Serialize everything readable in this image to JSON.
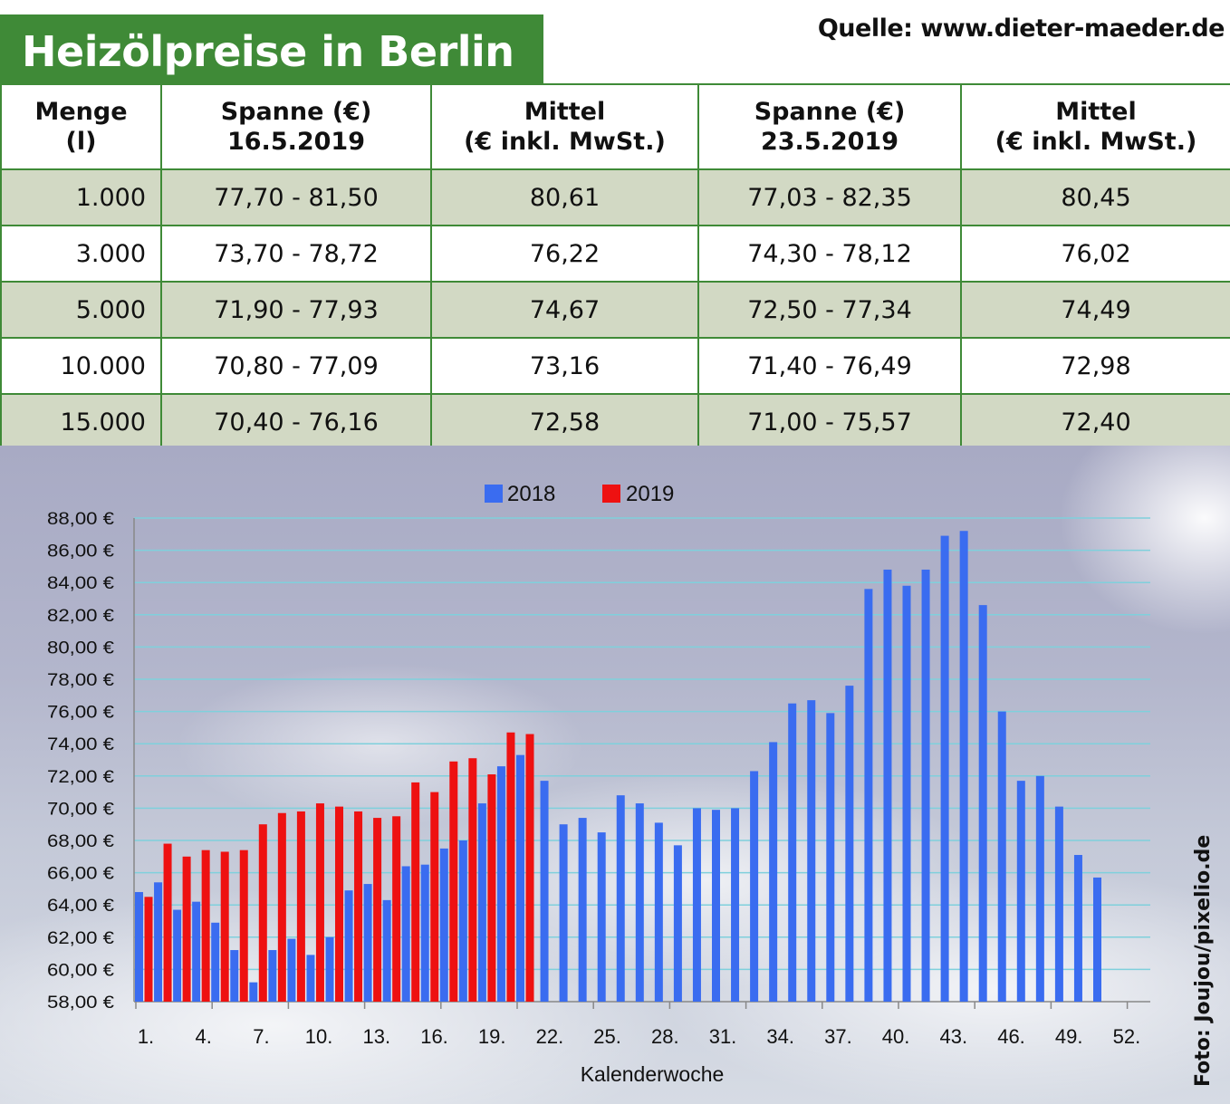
{
  "header": {
    "title": "Heizölpreise in Berlin",
    "source": "Quelle: www.dieter-maeder.de"
  },
  "table": {
    "headers": [
      [
        "Menge",
        "(l)"
      ],
      [
        "Spanne (€)",
        "16.5.2019"
      ],
      [
        "Mittel",
        "(€ inkl. MwSt.)"
      ],
      [
        "Spanne (€)",
        "23.5.2019"
      ],
      [
        "Mittel",
        "(€ inkl. MwSt.)"
      ]
    ],
    "rows": [
      [
        "1.000",
        "77,70 - 81,50",
        "80,61",
        "77,03 - 82,35",
        "80,45"
      ],
      [
        "3.000",
        "73,70 - 78,72",
        "76,22",
        "74,30 - 78,12",
        "76,02"
      ],
      [
        "5.000",
        "71,90 - 77,93",
        "74,67",
        "72,50 - 77,34",
        "74,49"
      ],
      [
        "10.000",
        "70,80 - 77,09",
        "73,16",
        "71,40 - 76,49",
        "72,98"
      ],
      [
        "15.000",
        "70,40 - 76,16",
        "72,58",
        "71,00 - 75,57",
        "72,40"
      ]
    ]
  },
  "photo_credit": "Foto: Joujou/pixelio.de",
  "colors": {
    "green": "#3f8a37",
    "shade": "#d2d9c4",
    "series_2018": "#3a6cf0",
    "series_2019": "#ee1111",
    "gridline": "#7fd0dc"
  },
  "chart_data": {
    "type": "bar",
    "title": "",
    "xlabel": "Kalenderwoche",
    "ylabel": "",
    "legend_position": "top-center",
    "grid": true,
    "ylim": [
      58,
      88
    ],
    "yticks": [
      "58,00 €",
      "60,00 €",
      "62,00 €",
      "64,00 €",
      "66,00 €",
      "68,00 €",
      "70,00 €",
      "72,00 €",
      "74,00 €",
      "76,00 €",
      "78,00 €",
      "80,00 €",
      "82,00 €",
      "84,00 €",
      "86,00 €",
      "88,00 €"
    ],
    "xticks": [
      "1.",
      "4.",
      "7.",
      "10.",
      "13.",
      "16.",
      "19.",
      "22.",
      "25.",
      "28.",
      "31.",
      "34.",
      "37.",
      "40.",
      "43.",
      "46.",
      "49.",
      "52."
    ],
    "series": [
      {
        "name": "2018",
        "values": [
          64.8,
          65.4,
          63.7,
          64.2,
          62.9,
          61.2,
          59.2,
          61.2,
          61.9,
          60.9,
          62.0,
          64.9,
          65.3,
          64.3,
          66.4,
          66.5,
          67.5,
          68.0,
          70.3,
          72.6,
          73.3,
          71.7,
          69.0,
          69.4,
          68.5,
          70.8,
          70.3,
          69.1,
          67.7,
          70.0,
          69.9,
          70.0,
          72.3,
          74.1,
          76.5,
          76.7,
          75.9,
          77.6,
          83.6,
          84.8,
          83.8,
          84.8,
          86.9,
          87.2,
          82.6,
          76.0,
          71.7,
          72.0,
          70.1,
          67.1,
          65.7
        ]
      },
      {
        "name": "2019",
        "values": [
          64.5,
          67.8,
          67.0,
          67.4,
          67.3,
          67.4,
          69.0,
          69.7,
          69.8,
          70.3,
          70.1,
          69.8,
          69.4,
          69.5,
          71.6,
          71.0,
          72.9,
          73.1,
          72.1,
          74.7,
          74.6
        ]
      }
    ]
  }
}
